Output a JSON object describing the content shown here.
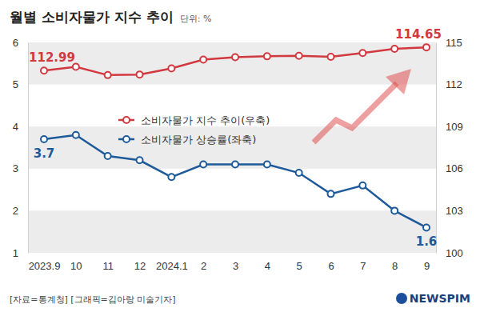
{
  "chart_data": {
    "type": "line",
    "title": "월별 소비자물가 지수 추이",
    "subtitle": "단위: %",
    "source": "[자료=통계청] [그래픽=김아랑 미술기자]",
    "logo": "NEWSPIM",
    "categories": [
      "2023.9",
      "10",
      "11",
      "12",
      "2024.1",
      "2",
      "3",
      "4",
      "5",
      "6",
      "7",
      "8",
      "9"
    ],
    "series": [
      {
        "name": "소비자물가 지수 추이(우축)",
        "color": "#d2383f",
        "axis": "y2",
        "marker": "circle",
        "values": [
          112.99,
          113.26,
          112.67,
          112.71,
          113.15,
          113.77,
          113.94,
          114.01,
          114.04,
          113.97,
          114.24,
          114.54,
          114.65
        ],
        "value_labels": [
          "112.99",
          null,
          null,
          null,
          null,
          null,
          null,
          null,
          null,
          null,
          null,
          null,
          "114.65"
        ]
      },
      {
        "name": "소비자물가 상승률(좌축)",
        "color": "#1e5a99",
        "marker": "circle",
        "values": [
          3.7,
          3.8,
          3.3,
          3.2,
          2.8,
          3.1,
          3.1,
          3.1,
          2.9,
          2.4,
          2.6,
          2.0,
          1.6
        ],
        "value_labels": [
          "3.7",
          null,
          null,
          null,
          null,
          null,
          null,
          null,
          null,
          null,
          null,
          null,
          "1.6"
        ]
      }
    ],
    "ylim": [
      1,
      6
    ],
    "yticks": [
      1,
      2,
      3,
      4,
      5,
      6
    ],
    "y2lim": [
      100,
      115
    ],
    "y2ticks": [
      100,
      103,
      106,
      109,
      112,
      115
    ],
    "grid": true,
    "legend": "center",
    "data_labels": true
  }
}
